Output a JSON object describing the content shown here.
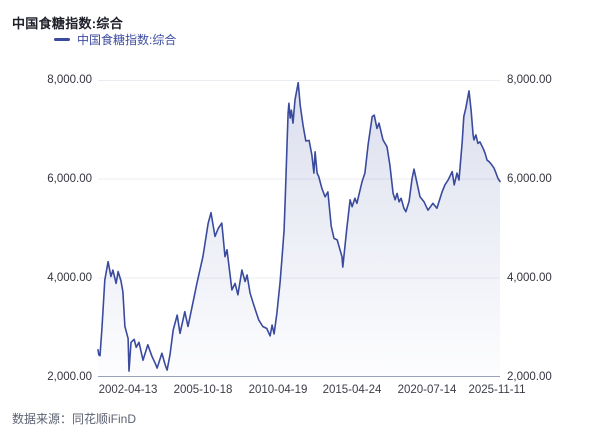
{
  "header": {
    "title": "中国食糖指数:综合"
  },
  "legend": {
    "items": [
      {
        "label": "中国食糖指数:综合",
        "color": "#3A4A9E"
      }
    ],
    "position": "top-left"
  },
  "footer": {
    "source": "数据来源：同花顺iFinD"
  },
  "chart_data": {
    "type": "area",
    "title": "中国食糖指数:综合",
    "series_name": "中国食糖指数:综合",
    "xlabel": "",
    "ylabel": "",
    "ylim": [
      2000,
      8000
    ],
    "y_ticks": [
      8000,
      6000,
      4000,
      2000
    ],
    "y_tick_labels": [
      "8,000.00",
      "6,000.00",
      "4,000.00",
      "2,000.00"
    ],
    "y_axis_sides": [
      "left",
      "right"
    ],
    "grid": "horizontal-only",
    "grid_color": "#EBECF2",
    "axis_line_color": "#99A1B6",
    "line_color": "#3A4A9E",
    "area_top_color": "rgba(76,94,168,0.20)",
    "area_bottom_color": "rgba(76,94,168,0.01)",
    "x_ticks": [
      {
        "label": "2002-04-13",
        "pos": 0.075
      },
      {
        "label": "2005-10-18",
        "pos": 0.261
      },
      {
        "label": "2010-04-19",
        "pos": 0.447
      },
      {
        "label": "2015-04-24",
        "pos": 0.632
      },
      {
        "label": "2020-07-14",
        "pos": 0.818
      },
      {
        "label": "2025-11-11",
        "pos": 0.993
      }
    ],
    "points": [
      [
        0,
        2550
      ],
      [
        0.002,
        2450
      ],
      [
        0.005,
        2430
      ],
      [
        0.01,
        3000
      ],
      [
        0.017,
        3960
      ],
      [
        0.025,
        4330
      ],
      [
        0.032,
        4030
      ],
      [
        0.037,
        4160
      ],
      [
        0.045,
        3890
      ],
      [
        0.05,
        4130
      ],
      [
        0.057,
        3950
      ],
      [
        0.062,
        3720
      ],
      [
        0.067,
        3020
      ],
      [
        0.075,
        2780
      ],
      [
        0.077,
        2120
      ],
      [
        0.082,
        2700
      ],
      [
        0.09,
        2760
      ],
      [
        0.095,
        2600
      ],
      [
        0.102,
        2700
      ],
      [
        0.112,
        2340
      ],
      [
        0.124,
        2650
      ],
      [
        0.134,
        2420
      ],
      [
        0.142,
        2280
      ],
      [
        0.147,
        2180
      ],
      [
        0.159,
        2480
      ],
      [
        0.167,
        2250
      ],
      [
        0.172,
        2140
      ],
      [
        0.179,
        2450
      ],
      [
        0.187,
        2950
      ],
      [
        0.197,
        3250
      ],
      [
        0.204,
        2880
      ],
      [
        0.216,
        3320
      ],
      [
        0.224,
        3020
      ],
      [
        0.236,
        3500
      ],
      [
        0.246,
        3890
      ],
      [
        0.261,
        4430
      ],
      [
        0.274,
        5100
      ],
      [
        0.281,
        5320
      ],
      [
        0.291,
        4840
      ],
      [
        0.299,
        5000
      ],
      [
        0.308,
        5110
      ],
      [
        0.316,
        4430
      ],
      [
        0.321,
        4570
      ],
      [
        0.333,
        3760
      ],
      [
        0.341,
        3890
      ],
      [
        0.348,
        3660
      ],
      [
        0.358,
        4160
      ],
      [
        0.366,
        3930
      ],
      [
        0.371,
        4060
      ],
      [
        0.378,
        3700
      ],
      [
        0.386,
        3490
      ],
      [
        0.393,
        3320
      ],
      [
        0.4,
        3150
      ],
      [
        0.41,
        3020
      ],
      [
        0.42,
        2980
      ],
      [
        0.428,
        2830
      ],
      [
        0.433,
        3050
      ],
      [
        0.438,
        2870
      ],
      [
        0.445,
        3290
      ],
      [
        0.453,
        3920
      ],
      [
        0.458,
        4430
      ],
      [
        0.463,
        4970
      ],
      [
        0.466,
        5640
      ],
      [
        0.47,
        6620
      ],
      [
        0.473,
        7330
      ],
      [
        0.475,
        7530
      ],
      [
        0.478,
        7230
      ],
      [
        0.481,
        7390
      ],
      [
        0.485,
        7130
      ],
      [
        0.49,
        7600
      ],
      [
        0.498,
        7945
      ],
      [
        0.503,
        7490
      ],
      [
        0.51,
        7090
      ],
      [
        0.517,
        6770
      ],
      [
        0.525,
        6780
      ],
      [
        0.532,
        6480
      ],
      [
        0.537,
        6120
      ],
      [
        0.54,
        6550
      ],
      [
        0.545,
        6120
      ],
      [
        0.549,
        6050
      ],
      [
        0.557,
        5810
      ],
      [
        0.565,
        5640
      ],
      [
        0.572,
        5740
      ],
      [
        0.58,
        5050
      ],
      [
        0.587,
        4800
      ],
      [
        0.595,
        4770
      ],
      [
        0.602,
        4570
      ],
      [
        0.607,
        4430
      ],
      [
        0.609,
        4220
      ],
      [
        0.619,
        5000
      ],
      [
        0.627,
        5580
      ],
      [
        0.632,
        5440
      ],
      [
        0.639,
        5610
      ],
      [
        0.644,
        5510
      ],
      [
        0.657,
        5950
      ],
      [
        0.664,
        6120
      ],
      [
        0.672,
        6690
      ],
      [
        0.682,
        7260
      ],
      [
        0.687,
        7290
      ],
      [
        0.694,
        7020
      ],
      [
        0.699,
        7130
      ],
      [
        0.709,
        6790
      ],
      [
        0.719,
        6650
      ],
      [
        0.726,
        6280
      ],
      [
        0.734,
        5710
      ],
      [
        0.739,
        5580
      ],
      [
        0.744,
        5710
      ],
      [
        0.749,
        5540
      ],
      [
        0.754,
        5610
      ],
      [
        0.761,
        5410
      ],
      [
        0.766,
        5340
      ],
      [
        0.774,
        5550
      ],
      [
        0.781,
        6000
      ],
      [
        0.786,
        6200
      ],
      [
        0.794,
        5900
      ],
      [
        0.801,
        5640
      ],
      [
        0.811,
        5540
      ],
      [
        0.821,
        5370
      ],
      [
        0.833,
        5510
      ],
      [
        0.843,
        5410
      ],
      [
        0.856,
        5740
      ],
      [
        0.863,
        5880
      ],
      [
        0.871,
        5980
      ],
      [
        0.881,
        6150
      ],
      [
        0.886,
        5880
      ],
      [
        0.893,
        6120
      ],
      [
        0.898,
        5980
      ],
      [
        0.906,
        6750
      ],
      [
        0.91,
        7260
      ],
      [
        0.915,
        7430
      ],
      [
        0.923,
        7780
      ],
      [
        0.928,
        7390
      ],
      [
        0.933,
        6890
      ],
      [
        0.935,
        6790
      ],
      [
        0.94,
        6890
      ],
      [
        0.945,
        6720
      ],
      [
        0.95,
        6750
      ],
      [
        0.958,
        6620
      ],
      [
        0.963,
        6520
      ],
      [
        0.968,
        6380
      ],
      [
        0.973,
        6350
      ],
      [
        0.978,
        6300
      ],
      [
        0.985,
        6220
      ],
      [
        0.99,
        6120
      ],
      [
        0.995,
        6010
      ],
      [
        1,
        5950
      ]
    ]
  }
}
